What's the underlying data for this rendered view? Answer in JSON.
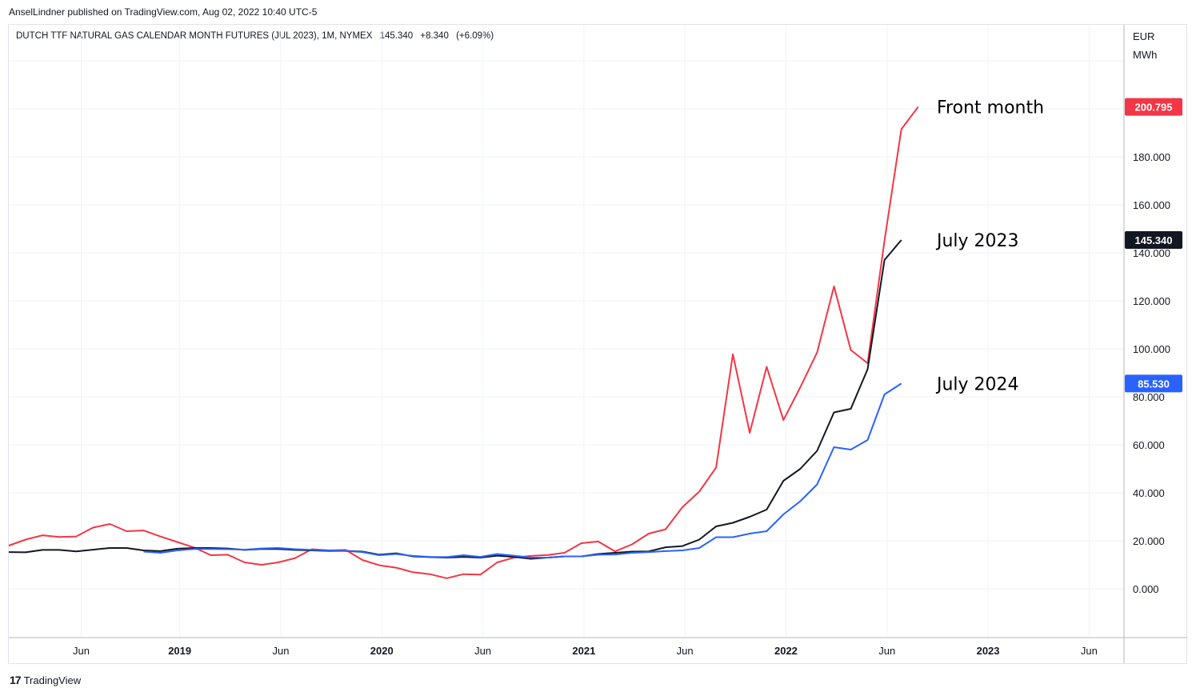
{
  "header": {
    "publisher": "AnselLindner published on TradingView.com, Aug 02, 2022 10:40 UTC-5",
    "symbol": "DUTCH TTF NATURAL GAS CALENDAR MONTH FUTURES (JUL 2023), 1M, NYMEX",
    "last": "145.340",
    "change": "+8.340",
    "change_pct": "(+6.09%)"
  },
  "axis": {
    "unit_line1": "EUR",
    "unit_line2": "MWh"
  },
  "footer": {
    "logo": "17",
    "brand": "TradingView"
  },
  "colors": {
    "front": "#f23645",
    "jul2023": "#131722",
    "jul2024": "#2962ff",
    "grid": "#f0f3fa"
  },
  "chart_data": {
    "type": "line",
    "ylim": [
      -20,
      220
    ],
    "y_ticks": [
      "0.000",
      "20.000",
      "40.000",
      "60.000",
      "80.000",
      "100.000",
      "120.000",
      "140.000",
      "160.000",
      "180.000"
    ],
    "x_ticks": [
      {
        "t": 4.3,
        "label": "Jun",
        "bold": false
      },
      {
        "t": 10.15,
        "label": "2019",
        "bold": true
      },
      {
        "t": 16.15,
        "label": "Jun",
        "bold": false
      },
      {
        "t": 22.15,
        "label": "2020",
        "bold": true
      },
      {
        "t": 28.15,
        "label": "Jun",
        "bold": false
      },
      {
        "t": 34.15,
        "label": "2021",
        "bold": true
      },
      {
        "t": 40.15,
        "label": "Jun",
        "bold": false
      },
      {
        "t": 46.15,
        "label": "2022",
        "bold": true
      },
      {
        "t": 52.15,
        "label": "Jun",
        "bold": false
      },
      {
        "t": 58.15,
        "label": "2023",
        "bold": true
      },
      {
        "t": 64.15,
        "label": "Jun",
        "bold": false
      }
    ],
    "series": [
      {
        "name": "Front month",
        "label": "Front month",
        "color": "#f23645",
        "last_label": "200.795",
        "points": [
          [
            0,
            18
          ],
          [
            1,
            20.5
          ],
          [
            2,
            22.3
          ],
          [
            3,
            21.6
          ],
          [
            4,
            21.8
          ],
          [
            5,
            25.5
          ],
          [
            6,
            27
          ],
          [
            7,
            24
          ],
          [
            8,
            24.3
          ],
          [
            9,
            21.8
          ],
          [
            10,
            19.5
          ],
          [
            11,
            17.2
          ],
          [
            12,
            14
          ],
          [
            13,
            14.2
          ],
          [
            14,
            11
          ],
          [
            15,
            10
          ],
          [
            16,
            11
          ],
          [
            17,
            12.8
          ],
          [
            18,
            16.5
          ],
          [
            19,
            16
          ],
          [
            20,
            16.2
          ],
          [
            21,
            12
          ],
          [
            22,
            9.8
          ],
          [
            23,
            8.8
          ],
          [
            24,
            6.9
          ],
          [
            25,
            6.1
          ],
          [
            26,
            4.4
          ],
          [
            27,
            6.1
          ],
          [
            28,
            5.9
          ],
          [
            29,
            11
          ],
          [
            30,
            13
          ],
          [
            31,
            13.7
          ],
          [
            32,
            14.1
          ],
          [
            33,
            15
          ],
          [
            34,
            19
          ],
          [
            35,
            19.7
          ],
          [
            36,
            15.6
          ],
          [
            37,
            18.5
          ],
          [
            38,
            23
          ],
          [
            39,
            24.8
          ],
          [
            40,
            34
          ],
          [
            41,
            40.5
          ],
          [
            42,
            50.5
          ],
          [
            43,
            97.7
          ],
          [
            44,
            65
          ],
          [
            45,
            92.5
          ],
          [
            46,
            70.3
          ],
          [
            47,
            84
          ],
          [
            48,
            98.5
          ],
          [
            49,
            126
          ],
          [
            50,
            99.5
          ],
          [
            51,
            94
          ],
          [
            52,
            145
          ],
          [
            53,
            191.5
          ],
          [
            54,
            200.795
          ]
        ]
      },
      {
        "name": "July 2023",
        "label": "July 2023",
        "color": "#131722",
        "last_label": "145.340",
        "points": [
          [
            0,
            15.3
          ],
          [
            1,
            15.2
          ],
          [
            2,
            16.2
          ],
          [
            3,
            16.2
          ],
          [
            4,
            15.6
          ],
          [
            5,
            16.3
          ],
          [
            6,
            17
          ],
          [
            7,
            17
          ],
          [
            8,
            16
          ],
          [
            9,
            15.7
          ],
          [
            10,
            16.7
          ],
          [
            11,
            17
          ],
          [
            12,
            17
          ],
          [
            13,
            16.8
          ],
          [
            14,
            16.2
          ],
          [
            15,
            16.6
          ],
          [
            16,
            16.6
          ],
          [
            17,
            16.2
          ],
          [
            18,
            16
          ],
          [
            19,
            15.8
          ],
          [
            20,
            15.8
          ],
          [
            21,
            15.5
          ],
          [
            22,
            14.2
          ],
          [
            23,
            14.8
          ],
          [
            24,
            13.5
          ],
          [
            25,
            13.2
          ],
          [
            26,
            13
          ],
          [
            27,
            13.3
          ],
          [
            28,
            13
          ],
          [
            29,
            13.8
          ],
          [
            30,
            13.3
          ],
          [
            31,
            12.5
          ],
          [
            32,
            13
          ],
          [
            33,
            13.5
          ],
          [
            34,
            13.5
          ],
          [
            35,
            14.5
          ],
          [
            36,
            15
          ],
          [
            37,
            15.5
          ],
          [
            38,
            15.6
          ],
          [
            39,
            17.3
          ],
          [
            40,
            17.8
          ],
          [
            41,
            20.5
          ],
          [
            42,
            26
          ],
          [
            43,
            27.5
          ],
          [
            44,
            30
          ],
          [
            45,
            33
          ],
          [
            46,
            45
          ],
          [
            47,
            50
          ],
          [
            48,
            57.5
          ],
          [
            49,
            73.5
          ],
          [
            50,
            75
          ],
          [
            51,
            91.5
          ],
          [
            52,
            137
          ],
          [
            53,
            145.34
          ]
        ]
      },
      {
        "name": "July 2024",
        "label": "July 2024",
        "color": "#2962ff",
        "last_label": "85.530",
        "points": [
          [
            8,
            15.5
          ],
          [
            9,
            15
          ],
          [
            10,
            16
          ],
          [
            11,
            16.6
          ],
          [
            12,
            16.6
          ],
          [
            13,
            16.5
          ],
          [
            14,
            16.3
          ],
          [
            15,
            16.8
          ],
          [
            16,
            17
          ],
          [
            17,
            16.5
          ],
          [
            18,
            16.2
          ],
          [
            19,
            16
          ],
          [
            20,
            15.8
          ],
          [
            21,
            15.3
          ],
          [
            22,
            14
          ],
          [
            23,
            14.5
          ],
          [
            24,
            13.7
          ],
          [
            25,
            13.3
          ],
          [
            26,
            13.2
          ],
          [
            27,
            14
          ],
          [
            28,
            13.3
          ],
          [
            29,
            14.5
          ],
          [
            30,
            13.8
          ],
          [
            31,
            13
          ],
          [
            32,
            13
          ],
          [
            33,
            13.5
          ],
          [
            34,
            13.5
          ],
          [
            35,
            14.2
          ],
          [
            36,
            14.3
          ],
          [
            37,
            15
          ],
          [
            38,
            15.3
          ],
          [
            39,
            15.7
          ],
          [
            40,
            16
          ],
          [
            41,
            17
          ],
          [
            42,
            21.5
          ],
          [
            43,
            21.5
          ],
          [
            44,
            23
          ],
          [
            45,
            24
          ],
          [
            46,
            31
          ],
          [
            47,
            36.5
          ],
          [
            48,
            43.5
          ],
          [
            49,
            59
          ],
          [
            50,
            58
          ],
          [
            51,
            62
          ],
          [
            52,
            81
          ],
          [
            53,
            85.53
          ]
        ]
      }
    ]
  }
}
